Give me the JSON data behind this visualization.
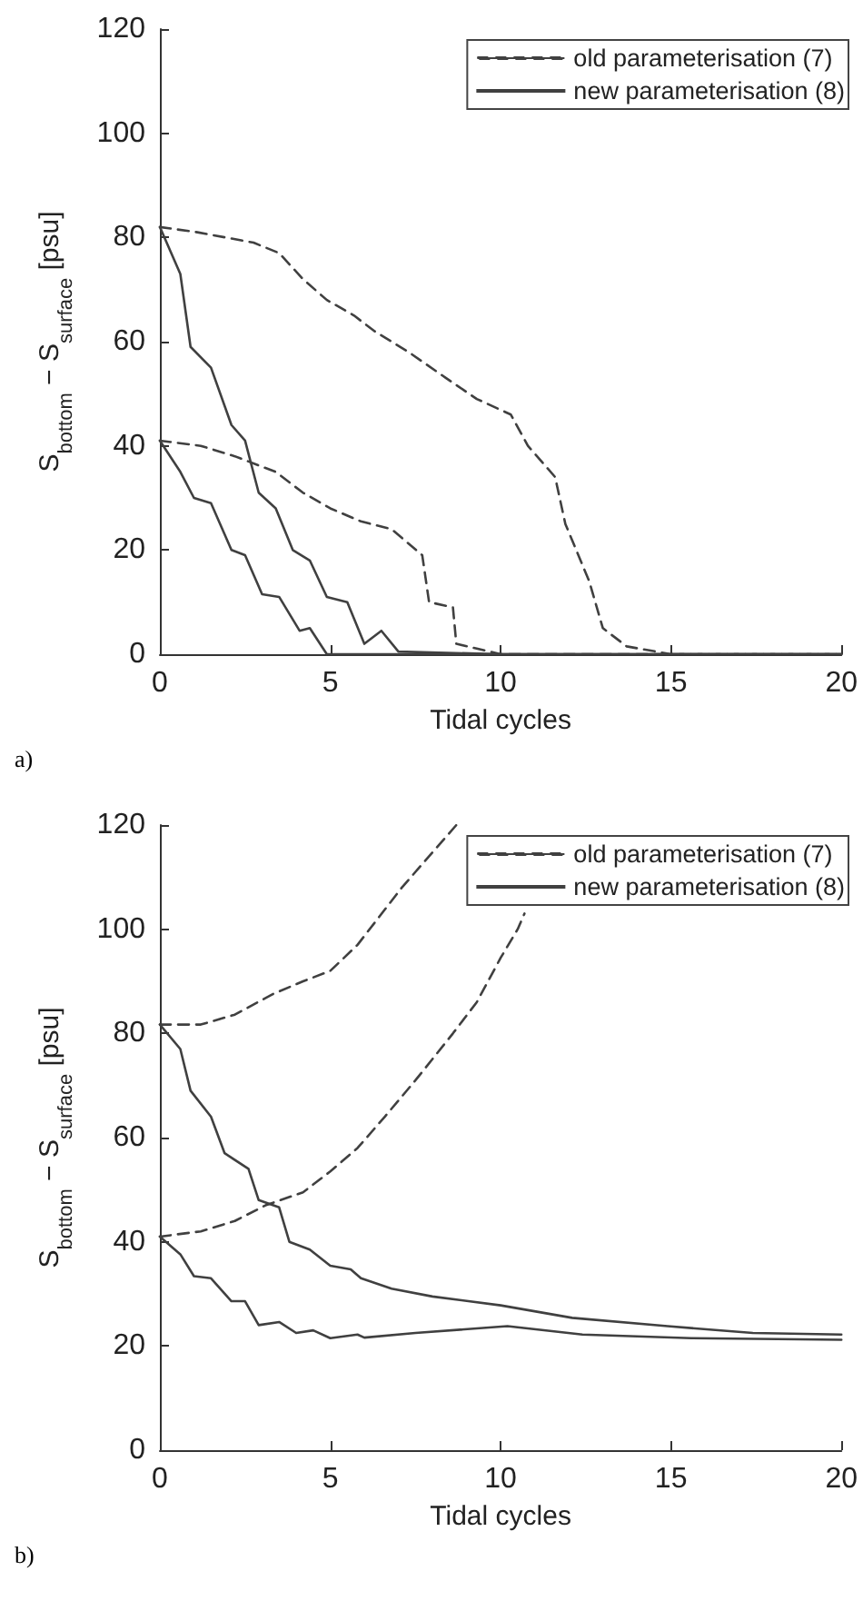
{
  "chart_data": [
    {
      "type": "line",
      "xlabel": "Tidal cycles",
      "ylabel": "S$_{bottom}$ − S$_{surface}$ [psu]",
      "annotations": [
        "a)"
      ],
      "xlim": [
        0,
        20
      ],
      "xticks": [
        0,
        5,
        10,
        15,
        20
      ],
      "ylim": [
        0,
        120
      ],
      "yticks": [
        0,
        20,
        40,
        60,
        80,
        100,
        120
      ],
      "grid": false,
      "legend": "top right",
      "marker": "none",
      "series": [
        {
          "name": "old parameterisation (7)",
          "color": "#404040",
          "line_style": "dashed",
          "x": [
            0,
            1.1,
            2.75,
            3.5,
            4.2,
            4.9,
            5.7,
            6.3,
            7.3,
            8.4,
            9.3,
            10.3,
            10.8,
            11.6,
            11.9,
            12.6,
            13,
            13.7,
            15,
            17,
            20
          ],
          "values": [
            82,
            81,
            79,
            77,
            72,
            68,
            65,
            62,
            58,
            53,
            49,
            46,
            40,
            34,
            25,
            14,
            5,
            1.5,
            0,
            0,
            0
          ]
        },
        {
          "name": "new parameterisation (8)",
          "color": "#404040",
          "line_style": "solid",
          "x": [
            0,
            0.6,
            0.9,
            1.5,
            2.1,
            2.5,
            2.9,
            3.4,
            3.9,
            4.4,
            4.9,
            5.5,
            6,
            6.5,
            7,
            10,
            15,
            20
          ],
          "values": [
            82,
            73,
            59,
            55,
            44,
            41,
            31,
            28,
            20,
            18,
            11,
            10,
            2,
            4.5,
            0.5,
            0,
            0,
            0
          ]
        },
        {
          "color": "#404040",
          "line_style": "dashed",
          "x": [
            0,
            1.2,
            2.2,
            3.4,
            4.2,
            5,
            5.9,
            6.8,
            7.7,
            7.9,
            8.6,
            8.7,
            10,
            15,
            20
          ],
          "values": [
            41,
            40,
            38,
            35,
            31,
            28,
            25.5,
            24,
            19,
            10,
            9,
            2,
            0,
            0,
            0
          ]
        },
        {
          "color": "#404040",
          "line_style": "solid",
          "x": [
            0,
            0.6,
            1,
            1.5,
            2.1,
            2.5,
            3,
            3.5,
            4.1,
            4.4,
            4.9,
            10,
            15,
            20
          ],
          "values": [
            41,
            35,
            30,
            29,
            20,
            19,
            11.5,
            11,
            4.5,
            5,
            0,
            0,
            0,
            0
          ]
        }
      ]
    },
    {
      "type": "line",
      "xlabel": "Tidal cycles",
      "ylabel": "S$_{bottom}$ − S$_{surface}$ [psu]",
      "annotations": [
        "b)"
      ],
      "xlim": [
        0,
        20
      ],
      "xticks": [
        0,
        5,
        10,
        15,
        20
      ],
      "ylim": [
        0,
        120
      ],
      "yticks": [
        0,
        20,
        40,
        60,
        80,
        100,
        120
      ],
      "grid": false,
      "legend": "top right",
      "marker": "none",
      "series": [
        {
          "name": "old parameterisation (7)",
          "color": "#404040",
          "line_style": "dashed",
          "x": [
            0,
            1.2,
            2.2,
            3.3,
            4.2,
            5,
            5.8,
            7.1,
            8.7
          ],
          "values": [
            81.7,
            81.7,
            83.6,
            87.5,
            90,
            92,
            97,
            108,
            120
          ]
        },
        {
          "name": "new parameterisation (8)",
          "color": "#404040",
          "line_style": "solid",
          "x": [
            0,
            0.6,
            0.9,
            1.5,
            1.9,
            2.6,
            2.9,
            3.5,
            3.8,
            4.4,
            5,
            5.6,
            5.9,
            6.8,
            8,
            10,
            12.1,
            14.9,
            17.4,
            20
          ],
          "values": [
            81.7,
            77,
            69,
            64,
            57,
            54,
            48,
            46.6,
            40,
            38.5,
            35.4,
            34.7,
            33,
            31,
            29.5,
            27.8,
            25.4,
            23.8,
            22.5,
            22.2
          ]
        },
        {
          "color": "#404040",
          "line_style": "dashed",
          "x": [
            0,
            1.2,
            2.2,
            3.1,
            4.2,
            5,
            5.8,
            6.6,
            7.5,
            8.6,
            9.3,
            10,
            10.5,
            10.7
          ],
          "values": [
            41,
            42,
            44,
            47,
            49.5,
            53.5,
            58,
            64,
            71,
            80,
            86,
            94.5,
            100,
            103
          ]
        },
        {
          "color": "#404040",
          "line_style": "solid",
          "x": [
            0,
            0.6,
            1,
            1.5,
            2.1,
            2.5,
            2.9,
            3.5,
            4,
            4.5,
            5,
            5.8,
            6,
            7.5,
            10.2,
            12.4,
            15.6,
            20
          ],
          "values": [
            41,
            37.6,
            33.4,
            33,
            28.6,
            28.6,
            24,
            24.6,
            22.5,
            23,
            21.5,
            22.2,
            21.6,
            22.5,
            23.8,
            22.2,
            21.5,
            21.2
          ]
        }
      ]
    }
  ]
}
